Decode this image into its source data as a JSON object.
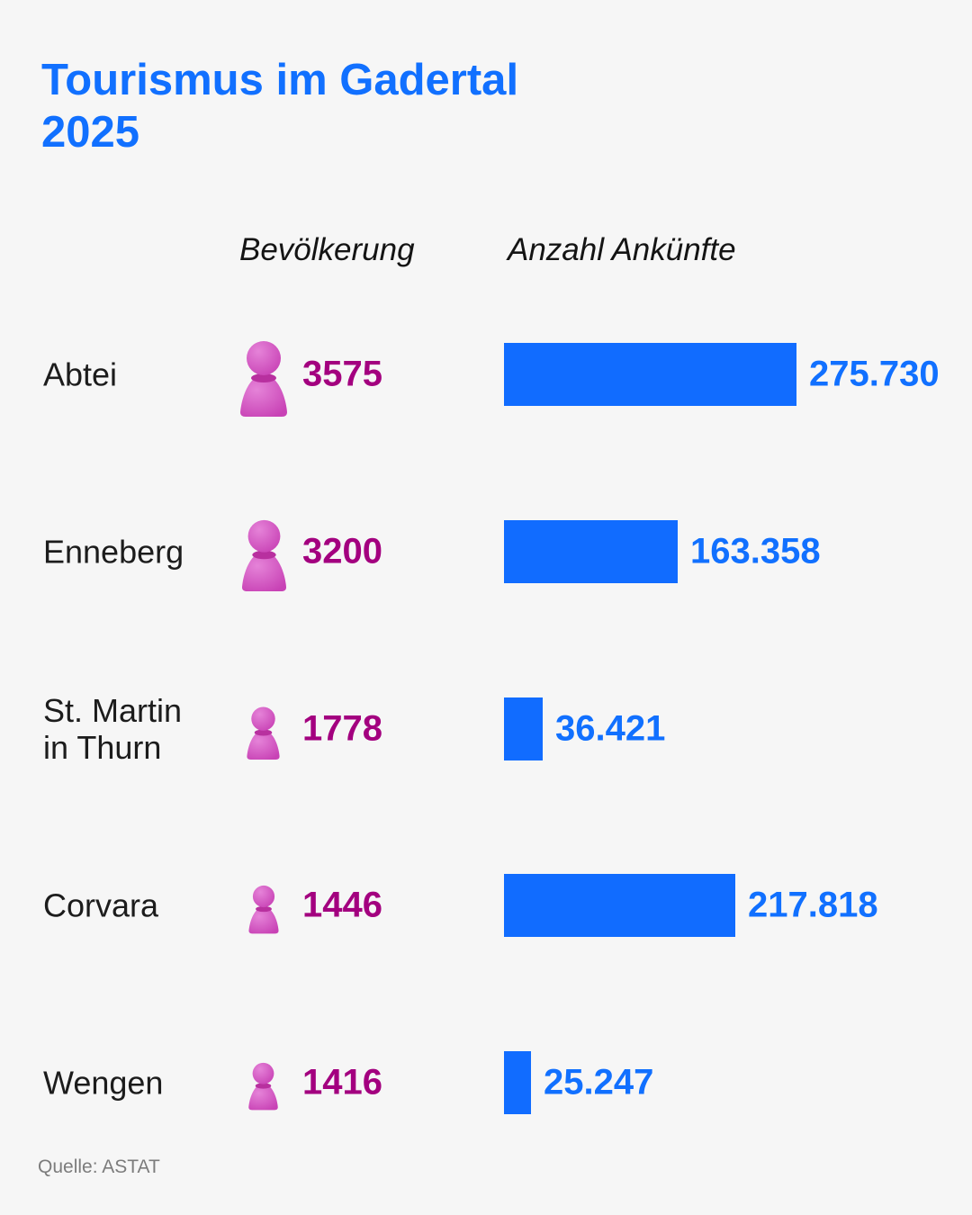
{
  "title_lines": [
    "Tourismus im Gadertal",
    "2025"
  ],
  "column_headers": {
    "population": "Bevölkerung",
    "arrivals": "Anzahl Ankünfte"
  },
  "source": "Quelle: ASTAT",
  "colors": {
    "title": "#1170ff",
    "bar": "#116cff",
    "population": "#a3007f",
    "pawn": "#c842b5",
    "background": "#f6f6f6"
  },
  "icon": "pawn-icon",
  "chart_data": {
    "type": "bar",
    "orientation": "horizontal",
    "title": "Tourismus im Gadertal 2025",
    "categories": [
      "Abtei",
      "Enneberg",
      "St. Martin\nin Thurn",
      "Corvara",
      "Wengen"
    ],
    "series": [
      {
        "name": "Anzahl Ankünfte",
        "values": [
          275730,
          163358,
          36421,
          217818,
          25247
        ],
        "labels": [
          "275.730",
          "163.358",
          "36.421",
          "217.818",
          "25.247"
        ]
      },
      {
        "name": "Bevölkerung",
        "values": [
          3575,
          3200,
          1778,
          1446,
          1416
        ],
        "labels": [
          "3575",
          "3200",
          "1778",
          "1446",
          "1416"
        ]
      }
    ],
    "xlim": [
      0,
      275730
    ],
    "grid": false,
    "legend": "none"
  }
}
